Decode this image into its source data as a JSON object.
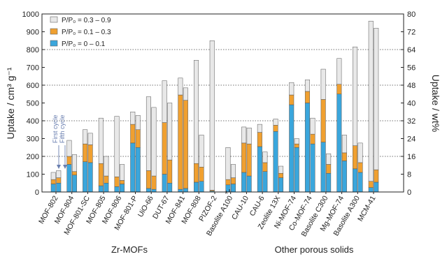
{
  "chart_data": {
    "type": "bar",
    "subtype": "stacked, paired (first cycle / fifth cycle)",
    "ylabel_left": "Uptake / cm³ g⁻¹",
    "ylabel_right": "Uptake / wt%",
    "ylim_left": [
      0,
      1000
    ],
    "yticks_left": [
      0,
      100,
      200,
      300,
      400,
      500,
      600,
      700,
      800,
      900,
      1000
    ],
    "ylim_right": [
      0,
      80
    ],
    "yticks_right": [
      0,
      8,
      16,
      24,
      32,
      40,
      48,
      56,
      64,
      72,
      80
    ],
    "grid": "dotted horizontal at 200, 400, 600, 800",
    "legend_position": "top-left",
    "series": [
      {
        "name": "P/P₀ = 0 – 0.1",
        "color": "#3aa6dc"
      },
      {
        "name": "P/P₀ = 0.1 – 0.3",
        "color": "#f0a030"
      },
      {
        "name": "P/P₀ = 0.3 – 0.9",
        "color": "#e8e8e8"
      }
    ],
    "group_labels": [
      "Zr-MOFs",
      "Other porous solids"
    ],
    "annotations": {
      "first_cycle": "First cycle",
      "fifth_cycle": "Fifth cycle",
      "asterisk": "*"
    },
    "categories": [
      {
        "name": "MOF-802",
        "first": [
          45,
          25,
          40
        ],
        "fifth": [
          50,
          30,
          40
        ]
      },
      {
        "name": "MOF-804",
        "first": [
          155,
          45,
          90
        ],
        "fifth": [
          95,
          20,
          95
        ]
      },
      {
        "name": "MOF-801-SC",
        "first": [
          170,
          100,
          80
        ],
        "fifth": [
          165,
          100,
          65
        ]
      },
      {
        "name": "MOF-805",
        "first": [
          35,
          125,
          255
        ],
        "fifth": [
          50,
          40,
          110
        ]
      },
      {
        "name": "MOF-806",
        "first": [
          30,
          55,
          340
        ],
        "fifth": [
          45,
          20,
          90
        ]
      },
      {
        "name": "MOF-801-P",
        "first": [
          275,
          105,
          70
        ],
        "fifth": [
          250,
          100,
          80
        ]
      },
      {
        "name": "UiO-66",
        "first": [
          20,
          100,
          415
        ],
        "fifth": [
          15,
          75,
          385
        ]
      },
      {
        "name": "DUT-67",
        "first": [
          100,
          290,
          235
        ],
        "fifth": [
          50,
          130,
          320
        ]
      },
      {
        "name": "MOF-841",
        "first": [
          15,
          530,
          95
        ],
        "fifth": [
          20,
          495,
          70
        ]
      },
      {
        "name": "MOF-808",
        "first": [
          55,
          105,
          580
        ],
        "fifth": [
          60,
          80,
          180
        ]
      },
      {
        "name": "PIZOF-2",
        "first": [
          5,
          5,
          840
        ],
        "fifth": [
          0,
          0,
          0
        ]
      },
      {
        "name": "Basolite A100",
        "first": [
          40,
          30,
          180
        ],
        "fifth": [
          45,
          35,
          75
        ]
      },
      {
        "name": "CAU-10",
        "first": [
          110,
          165,
          90
        ],
        "fifth": [
          90,
          180,
          90
        ]
      },
      {
        "name": "CAU-6",
        "first": [
          255,
          80,
          45
        ],
        "fifth": [
          115,
          50,
          60
        ]
      },
      {
        "name": "Zeolite 13X",
        "first": [
          340,
          35,
          35
        ],
        "fifth": [
          80,
          25,
          40
        ]
      },
      {
        "name": "Ni-MOF-74",
        "first": [
          490,
          55,
          70
        ],
        "fifth": [
          250,
          20,
          30
        ]
      },
      {
        "name": "Co-MOF-74",
        "first": [
          500,
          65,
          65
        ],
        "fifth": [
          270,
          55,
          90
        ]
      },
      {
        "name": "Basolite C300",
        "first": [
          280,
          240,
          170
        ],
        "fifth": [
          105,
          50,
          60
        ]
      },
      {
        "name": "Mg-MOF-74",
        "first": [
          550,
          55,
          145
        ],
        "fifth": [
          175,
          45,
          100
        ]
      },
      {
        "name": "Basolite A300",
        "first": [
          130,
          130,
          555
        ],
        "fifth": [
          110,
          55,
          110
        ]
      },
      {
        "name": "MCM-41",
        "first": [
          25,
          35,
          900
        ],
        "fifth": [
          55,
          70,
          795
        ]
      }
    ]
  }
}
